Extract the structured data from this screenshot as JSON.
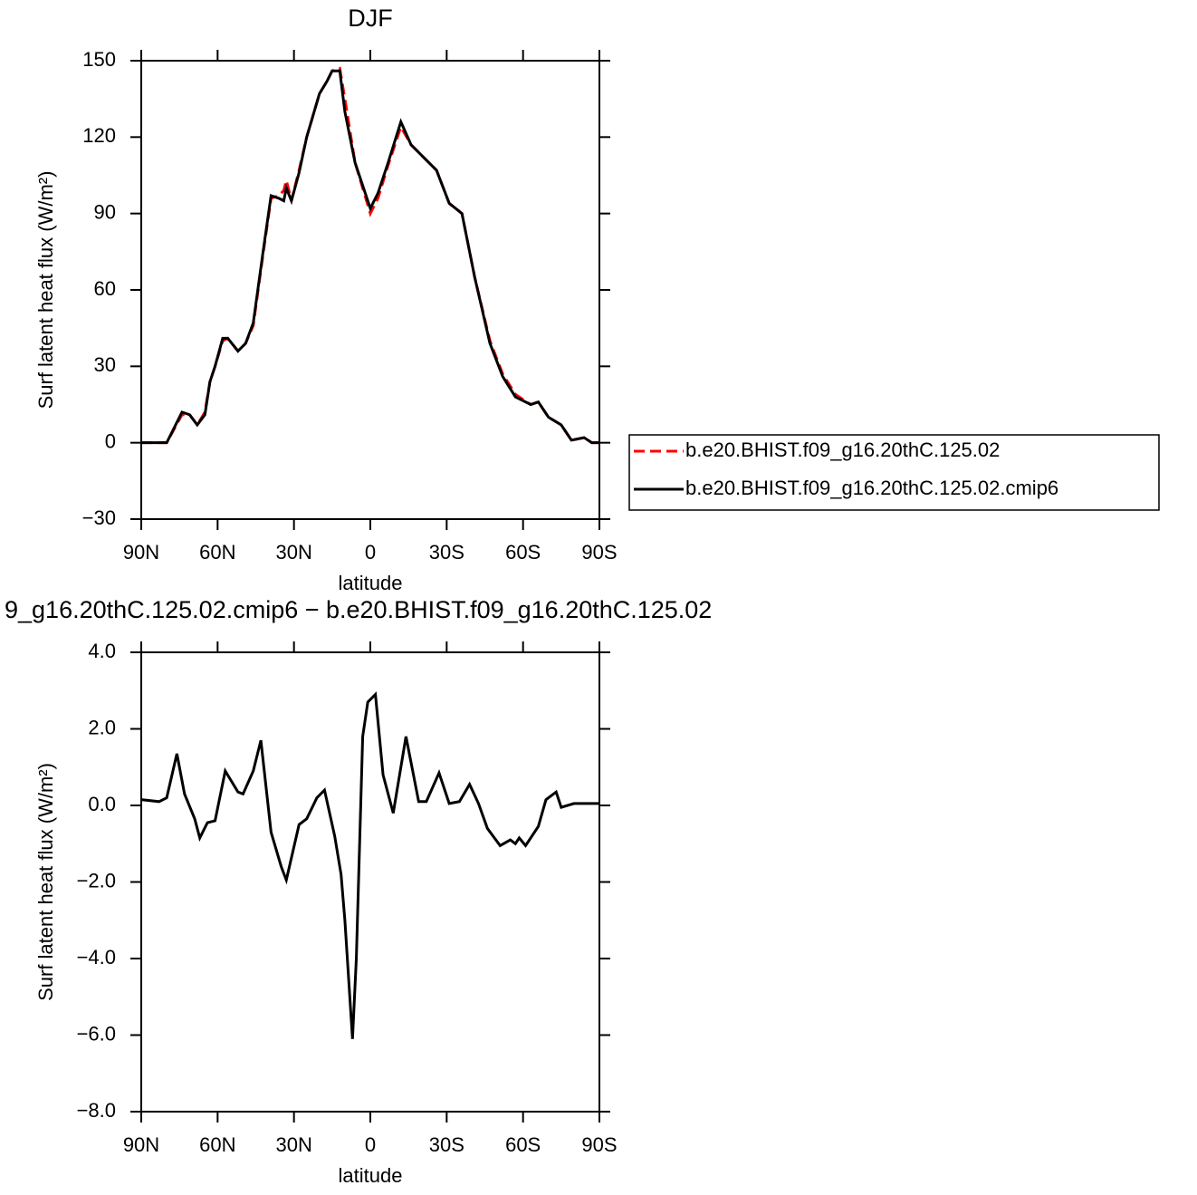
{
  "chart_data": [
    {
      "type": "line",
      "title": "DJF",
      "xlabel": "latitude",
      "ylabel": "Surf latent heat flux (W/m²)",
      "x": [
        90,
        80,
        74,
        71,
        68,
        65,
        63,
        61,
        58,
        56,
        52,
        49,
        46,
        42,
        39,
        36,
        34,
        33,
        31,
        28,
        25,
        20,
        17,
        15,
        12,
        10,
        6,
        3,
        0,
        -3,
        -7,
        -12,
        -16,
        -22,
        -26,
        -31,
        -36,
        -41,
        -47,
        -52,
        -57,
        -63,
        -66,
        -70,
        -75,
        -79,
        -84,
        -87,
        -90
      ],
      "series": [
        {
          "name": "b.e20.BHIST.f09_g16.20thC.125.02",
          "color": "#ff0000",
          "linestyle": "dashed",
          "values": [
            0,
            0,
            11,
            11,
            7,
            12,
            24,
            30,
            40,
            41,
            36,
            39,
            46,
            75,
            96,
            97,
            99,
            103,
            95,
            107,
            120,
            137,
            142,
            146,
            147,
            135,
            110,
            100,
            90,
            96,
            109,
            124,
            117,
            111,
            107,
            94,
            90,
            65,
            40,
            27,
            19,
            15,
            16,
            10,
            7,
            1,
            2,
            0,
            0
          ]
        },
        {
          "name": "b.e20.BHIST.f09_g16.20thC.125.02.cmip6",
          "color": "#000000",
          "linestyle": "solid",
          "values": [
            0,
            0,
            12,
            11,
            7,
            11,
            24,
            30,
            41,
            41,
            36,
            39,
            47,
            76,
            97,
            96,
            95,
            100,
            95,
            106,
            120,
            137,
            142,
            146,
            146,
            130,
            110,
            101,
            92,
            98,
            110,
            126,
            117,
            111,
            107,
            94,
            90,
            65,
            39,
            26,
            18,
            15,
            16,
            10,
            7,
            1,
            2,
            0,
            0
          ]
        }
      ],
      "xlim": [
        90,
        -90
      ],
      "xticks": [
        {
          "value": 90,
          "label": "90N"
        },
        {
          "value": 60,
          "label": "60N"
        },
        {
          "value": 30,
          "label": "30N"
        },
        0,
        {
          "value": -30,
          "label": "30S"
        },
        {
          "value": -60,
          "label": "60S"
        },
        {
          "value": -90,
          "label": "90S"
        }
      ],
      "ylim": [
        -30,
        150
      ],
      "yticks": [
        {
          "value": -30,
          "label": "−30"
        },
        0,
        30,
        60,
        90,
        120,
        150
      ],
      "legend": "right"
    },
    {
      "type": "line",
      "title": "9_g16.20thC.125.02.cmip6 − b.e20.BHIST.f09_g16.20thC.125.02",
      "xlabel": "latitude",
      "ylabel": "Surf latent heat flux (W/m²)",
      "x": [
        90,
        83,
        80,
        76,
        73,
        69,
        67,
        64,
        61,
        57,
        52,
        50,
        46,
        43,
        39,
        35,
        33,
        28,
        25,
        21,
        18,
        14,
        11.5,
        10,
        7,
        5.5,
        3,
        1,
        -2,
        -5,
        -9,
        -14,
        -19,
        -22,
        -27,
        -31,
        -35,
        -39,
        -42.5,
        -46,
        -51,
        -55,
        -57,
        -58.5,
        -61,
        -66,
        -69,
        -73,
        -75,
        -80,
        -90
      ],
      "values": [
        0.15,
        0.1,
        0.2,
        1.35,
        0.3,
        -0.35,
        -0.85,
        -0.45,
        -0.4,
        0.9,
        0.35,
        0.3,
        0.9,
        1.7,
        -0.7,
        -1.6,
        -1.95,
        -0.5,
        -0.35,
        0.2,
        0.4,
        -0.8,
        -1.8,
        -3.0,
        -6.1,
        -4.0,
        1.8,
        2.7,
        2.9,
        0.8,
        -0.2,
        1.8,
        0.1,
        0.1,
        0.85,
        0.05,
        0.1,
        0.55,
        0.05,
        -0.6,
        -1.05,
        -0.9,
        -1.0,
        -0.85,
        -1.05,
        -0.55,
        0.15,
        0.35,
        -0.05,
        0.05,
        0.05
      ],
      "color": "#000000",
      "xlim": [
        90,
        -90
      ],
      "xticks": [
        {
          "value": 90,
          "label": "90N"
        },
        {
          "value": 60,
          "label": "60N"
        },
        {
          "value": 30,
          "label": "30N"
        },
        0,
        {
          "value": -30,
          "label": "30S"
        },
        {
          "value": -60,
          "label": "60S"
        },
        {
          "value": -90,
          "label": "90S"
        }
      ],
      "ylim": [
        -8,
        4
      ],
      "yticks": [
        {
          "value": -8,
          "label": "−8.0"
        },
        {
          "value": -6,
          "label": "−6.0"
        },
        {
          "value": -4,
          "label": "−4.0"
        },
        {
          "value": -2,
          "label": "−2.0"
        },
        {
          "value": 0,
          "label": "0.0"
        },
        {
          "value": 2,
          "label": "2.0"
        },
        {
          "value": 4,
          "label": "4.0"
        }
      ]
    }
  ]
}
